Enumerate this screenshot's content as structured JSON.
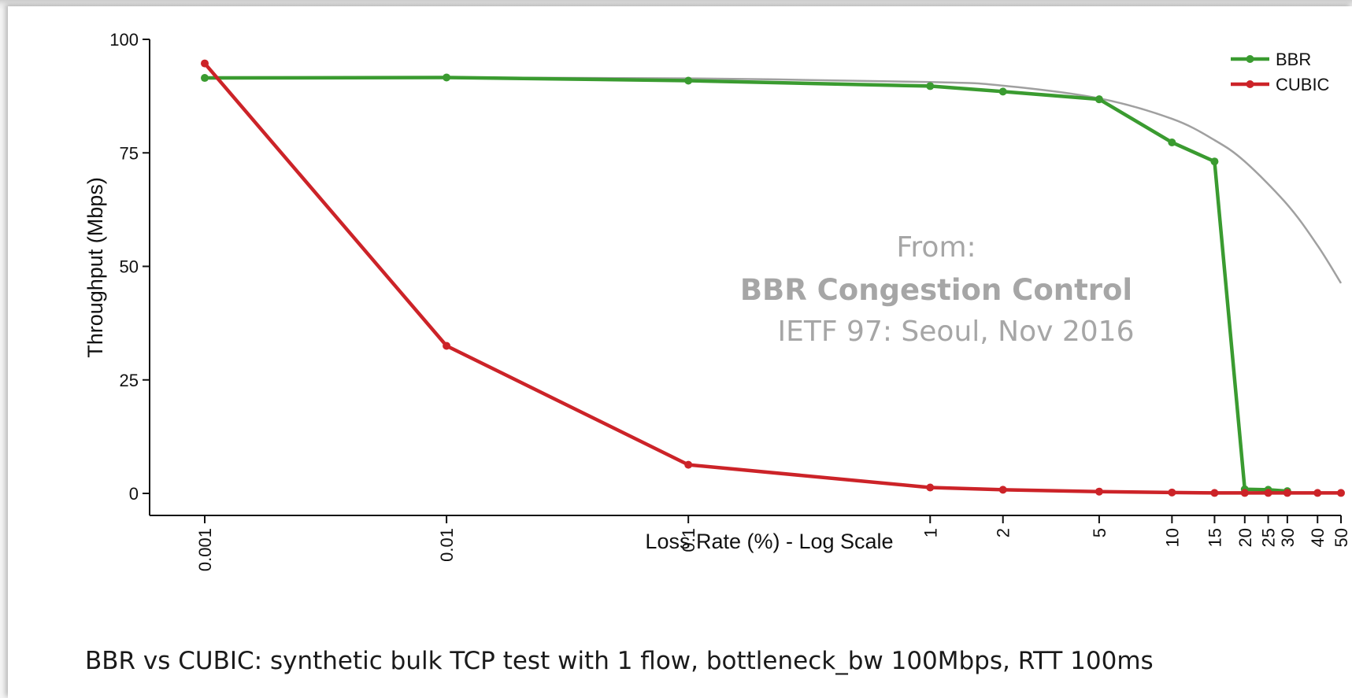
{
  "caption": "BBR vs CUBIC: synthetic bulk TCP test with 1 flow, bottleneck_bw 100Mbps, RTT 100ms",
  "watermark": {
    "line1": "From:",
    "line2": "BBR Congestion Control",
    "line3": "IETF 97: Seoul, Nov 2016"
  },
  "chart_data": {
    "type": "line",
    "title": "",
    "xlabel": "Loss Rate (%) - Log Scale",
    "ylabel": "Throughput (Mbps)",
    "x_scale": "log",
    "xlim": [
      0.001,
      50
    ],
    "ylim": [
      0,
      100
    ],
    "x_ticks": [
      "0.001",
      "0.01",
      "0.1",
      "1",
      "2",
      "5",
      "10",
      "15",
      "20",
      "25",
      "30",
      "40",
      "50"
    ],
    "x_tick_values": [
      0.001,
      0.01,
      0.1,
      1,
      2,
      5,
      10,
      15,
      20,
      25,
      30,
      40,
      50
    ],
    "y_ticks": [
      "0",
      "25",
      "50",
      "75",
      "100"
    ],
    "y_tick_values": [
      0,
      25,
      50,
      75,
      100
    ],
    "grid": false,
    "legend_position": "top-right",
    "series": [
      {
        "name": "BBR",
        "color": "#3a9b30",
        "x": [
          0.001,
          0.01,
          0.1,
          1,
          2,
          5,
          10,
          15,
          20,
          25,
          30
        ],
        "y": [
          91.5,
          91.6,
          90.9,
          89.7,
          88.5,
          86.8,
          77.3,
          73.1,
          0.9,
          0.8,
          0.5
        ]
      },
      {
        "name": "CUBIC",
        "color": "#cc2328",
        "x": [
          0.001,
          0.01,
          0.1,
          1,
          2,
          5,
          10,
          15,
          20,
          25,
          30,
          40,
          50
        ],
        "y": [
          94.7,
          32.5,
          6.3,
          1.3,
          0.8,
          0.4,
          0.2,
          0.1,
          0.1,
          0.1,
          0.1,
          0.1,
          0.1
        ]
      }
    ],
    "reference_curve": {
      "color": "#a0a0a0",
      "x": [
        0.001,
        0.01,
        0.1,
        1,
        2,
        5,
        10,
        15,
        20,
        30,
        40,
        50
      ],
      "y": [
        91.6,
        91.6,
        91.4,
        90.6,
        89.8,
        87.0,
        82.5,
        77.8,
        73.1,
        63.6,
        54.6,
        46.3
      ]
    }
  }
}
